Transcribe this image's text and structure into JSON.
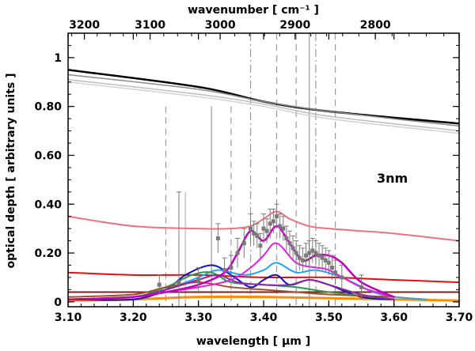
{
  "chart_data": {
    "type": "line",
    "xlabel": "wavelength [ μm ]",
    "ylabel": "optical depth [ arbitrary units ]",
    "top_axis_label": "wavenumber [ cm⁻¹ ]",
    "annotation": "3nm",
    "xlim": [
      3.1,
      3.7
    ],
    "ylim": [
      -0.02,
      1.1
    ],
    "x_ticks": [
      3.1,
      3.2,
      3.3,
      3.4,
      3.5,
      3.6,
      3.7
    ],
    "x_tick_labels": [
      "3.10",
      "3.20",
      "3.30",
      "3.40",
      "3.50",
      "3.60",
      "3.70"
    ],
    "y_ticks": [
      0,
      0.2,
      0.4,
      0.6,
      0.8,
      1
    ],
    "y_tick_labels": [
      "0",
      "0.20",
      "0.40",
      "0.60",
      "0.80",
      "1"
    ],
    "top_ticks": [
      3200,
      3100,
      3000,
      2900,
      2800
    ],
    "top_tick_labels": [
      "3200",
      "3100",
      "3000",
      "2900",
      "2800"
    ],
    "vertical_lines": [
      {
        "x": 3.25,
        "style": "dashed",
        "y_top": 0.8
      },
      {
        "x": 3.28,
        "style": "solid-thin",
        "y_top": 0.45
      },
      {
        "x": 3.32,
        "style": "solid",
        "y_top": 0.8
      },
      {
        "x": 3.35,
        "style": "dashed",
        "y_top": 0.8
      },
      {
        "x": 3.38,
        "style": "dashdot",
        "y_top": 1.1
      },
      {
        "x": 3.42,
        "style": "dashed",
        "y_top": 1.1
      },
      {
        "x": 3.45,
        "style": "dashed",
        "y_top": 1.1
      },
      {
        "x": 3.47,
        "style": "solid",
        "y_top": 1.1
      },
      {
        "x": 3.48,
        "style": "dashdot",
        "y_top": 1.1
      },
      {
        "x": 3.51,
        "style": "dashed",
        "y_top": 1.1
      }
    ],
    "series": [
      {
        "name": "black",
        "color": "#000000",
        "width": 2.5,
        "x": [
          3.1,
          3.3,
          3.4,
          3.5,
          3.7
        ],
        "y": [
          0.95,
          0.88,
          0.82,
          0.78,
          0.73
        ]
      },
      {
        "name": "gray-1",
        "color": "#8a8a8a",
        "width": 1.5,
        "x": [
          3.1,
          3.3,
          3.4,
          3.5,
          3.7
        ],
        "y": [
          0.93,
          0.87,
          0.82,
          0.78,
          0.72
        ]
      },
      {
        "name": "gray-2",
        "color": "#bdbdbd",
        "width": 1.5,
        "x": [
          3.1,
          3.3,
          3.4,
          3.5,
          3.7
        ],
        "y": [
          0.91,
          0.85,
          0.81,
          0.76,
          0.7
        ]
      },
      {
        "name": "gray-3",
        "color": "#d2d2d2",
        "width": 1.5,
        "x": [
          3.1,
          3.3,
          3.4,
          3.5,
          3.7
        ],
        "y": [
          0.9,
          0.84,
          0.8,
          0.75,
          0.69
        ]
      },
      {
        "name": "pink",
        "color": "#f07080",
        "width": 2,
        "x": [
          3.1,
          3.2,
          3.3,
          3.35,
          3.38,
          3.4,
          3.42,
          3.44,
          3.47,
          3.5,
          3.55,
          3.6,
          3.7
        ],
        "y": [
          0.35,
          0.31,
          0.3,
          0.3,
          0.31,
          0.34,
          0.37,
          0.34,
          0.31,
          0.3,
          0.29,
          0.28,
          0.25
        ]
      },
      {
        "name": "red",
        "color": "#e01010",
        "width": 2,
        "x": [
          3.1,
          3.2,
          3.3,
          3.4,
          3.5,
          3.6,
          3.7
        ],
        "y": [
          0.12,
          0.11,
          0.11,
          0.1,
          0.1,
          0.09,
          0.08
        ]
      },
      {
        "name": "dark-red",
        "color": "#8b1a1a",
        "width": 2,
        "x": [
          3.1,
          3.2,
          3.3,
          3.4,
          3.5,
          3.6,
          3.7
        ],
        "y": [
          0.04,
          0.04,
          0.04,
          0.04,
          0.04,
          0.04,
          0.04
        ]
      },
      {
        "name": "orange",
        "color": "#ff8c00",
        "width": 3,
        "x": [
          3.1,
          3.2,
          3.3,
          3.4,
          3.5,
          3.6,
          3.7
        ],
        "y": [
          0.005,
          0.01,
          0.02,
          0.02,
          0.015,
          0.01,
          0.005
        ]
      },
      {
        "name": "blue",
        "color": "#1010c0",
        "width": 2,
        "x": [
          3.1,
          3.2,
          3.25,
          3.28,
          3.32,
          3.35,
          3.38,
          3.4,
          3.42,
          3.44,
          3.47,
          3.5,
          3.55,
          3.6
        ],
        "y": [
          0.01,
          0.01,
          0.05,
          0.11,
          0.15,
          0.11,
          0.06,
          0.09,
          0.11,
          0.07,
          0.09,
          0.07,
          0.02,
          0.01
        ]
      },
      {
        "name": "cyan",
        "color": "#20a8e8",
        "width": 2,
        "x": [
          3.1,
          3.2,
          3.25,
          3.3,
          3.33,
          3.37,
          3.4,
          3.42,
          3.45,
          3.48,
          3.52,
          3.58,
          3.65
        ],
        "y": [
          0.01,
          0.02,
          0.05,
          0.1,
          0.13,
          0.11,
          0.13,
          0.16,
          0.12,
          0.13,
          0.1,
          0.03,
          0.01
        ]
      },
      {
        "name": "green",
        "color": "#2a9a50",
        "width": 2,
        "x": [
          3.1,
          3.2,
          3.25,
          3.29,
          3.32,
          3.35,
          3.4,
          3.45,
          3.5,
          3.6
        ],
        "y": [
          0.01,
          0.02,
          0.06,
          0.11,
          0.12,
          0.08,
          0.07,
          0.06,
          0.04,
          0.01
        ]
      },
      {
        "name": "brown",
        "color": "#a0522d",
        "width": 2,
        "x": [
          3.1,
          3.2,
          3.25,
          3.3,
          3.35,
          3.4,
          3.45,
          3.5,
          3.6
        ],
        "y": [
          0.02,
          0.03,
          0.06,
          0.08,
          0.06,
          0.05,
          0.04,
          0.03,
          0.02
        ]
      },
      {
        "name": "purple",
        "color": "#8e24aa",
        "width": 2,
        "x": [
          3.1,
          3.2,
          3.25,
          3.3,
          3.33,
          3.36,
          3.4,
          3.44,
          3.47,
          3.5,
          3.55,
          3.6
        ],
        "y": [
          0.01,
          0.02,
          0.05,
          0.09,
          0.11,
          0.08,
          0.07,
          0.07,
          0.09,
          0.07,
          0.03,
          0.01
        ]
      },
      {
        "name": "magenta-low",
        "color": "#e020e0",
        "width": 2,
        "x": [
          3.1,
          3.2,
          3.25,
          3.3,
          3.35,
          3.38,
          3.4,
          3.42,
          3.45,
          3.48,
          3.5,
          3.55,
          3.6
        ],
        "y": [
          0.01,
          0.02,
          0.04,
          0.06,
          0.09,
          0.14,
          0.19,
          0.24,
          0.16,
          0.14,
          0.13,
          0.06,
          0.02
        ]
      },
      {
        "name": "magenta",
        "color": "#c000c0",
        "width": 2.5,
        "x": [
          3.1,
          3.2,
          3.25,
          3.3,
          3.34,
          3.36,
          3.38,
          3.4,
          3.42,
          3.44,
          3.46,
          3.48,
          3.5,
          3.52,
          3.55,
          3.6
        ],
        "y": [
          0.01,
          0.02,
          0.04,
          0.07,
          0.12,
          0.2,
          0.29,
          0.25,
          0.31,
          0.24,
          0.17,
          0.19,
          0.19,
          0.16,
          0.08,
          0.02
        ]
      }
    ],
    "observed": {
      "name": "observed spectrum",
      "color": "#7a7a7a",
      "x": [
        3.24,
        3.27,
        3.3,
        3.33,
        3.34,
        3.35,
        3.36,
        3.37,
        3.38,
        3.385,
        3.39,
        3.395,
        3.4,
        3.405,
        3.41,
        3.415,
        3.42,
        3.425,
        3.43,
        3.435,
        3.44,
        3.445,
        3.45,
        3.455,
        3.46,
        3.465,
        3.47,
        3.475,
        3.48,
        3.485,
        3.49,
        3.495,
        3.5,
        3.505,
        3.51,
        3.52,
        3.55
      ],
      "y": [
        0.07,
        0.08,
        0.09,
        0.26,
        0.13,
        0.14,
        0.2,
        0.24,
        0.3,
        0.28,
        0.27,
        0.23,
        0.3,
        0.29,
        0.32,
        0.33,
        0.35,
        0.31,
        0.3,
        0.26,
        0.24,
        0.22,
        0.2,
        0.18,
        0.17,
        0.19,
        0.2,
        0.21,
        0.2,
        0.19,
        0.18,
        0.17,
        0.16,
        0.14,
        0.12,
        0.1,
        0.06
      ],
      "err": [
        0.04,
        0.37,
        0.05,
        0.06,
        0.05,
        0.05,
        0.06,
        0.06,
        0.06,
        0.05,
        0.05,
        0.05,
        0.06,
        0.05,
        0.06,
        0.05,
        0.05,
        0.05,
        0.05,
        0.05,
        0.05,
        0.05,
        0.05,
        0.05,
        0.05,
        0.05,
        0.05,
        0.05,
        0.05,
        0.05,
        0.05,
        0.05,
        0.05,
        0.05,
        0.05,
        0.05,
        0.05
      ]
    }
  }
}
